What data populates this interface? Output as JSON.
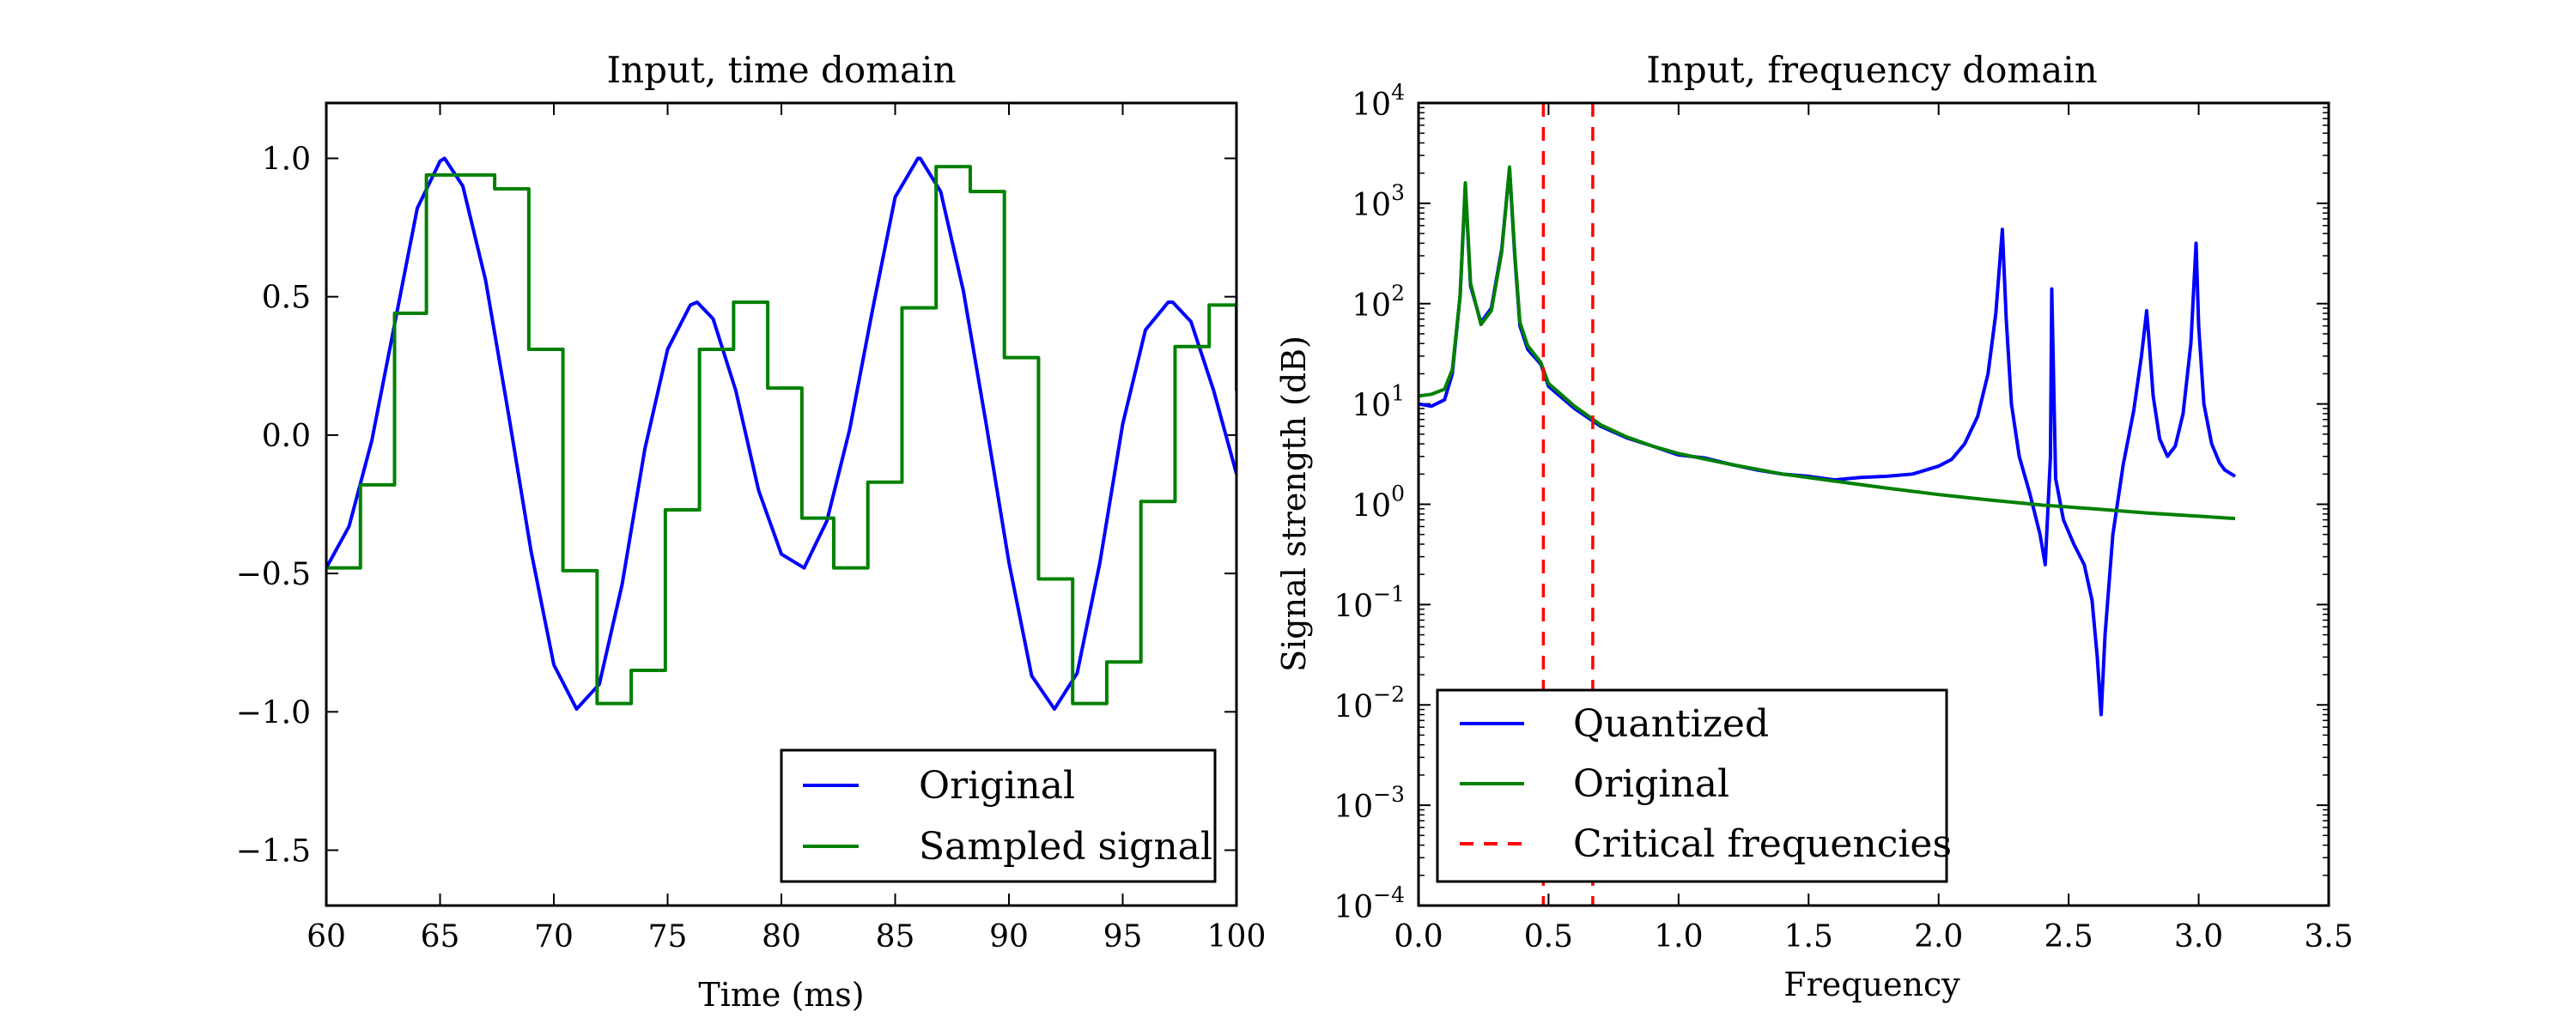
{
  "chart_data": [
    {
      "type": "line",
      "title": "Input, time domain",
      "xlabel": "Time (ms)",
      "ylabel": "",
      "xlim": [
        60,
        100
      ],
      "ylim": [
        -1.7,
        1.2
      ],
      "xticks": [
        60,
        65,
        70,
        75,
        80,
        85,
        90,
        95,
        100
      ],
      "xtick_labels": [
        "60",
        "65",
        "70",
        "75",
        "80",
        "85",
        "90",
        "95",
        "100"
      ],
      "yticks": [
        1.0,
        0.5,
        0.0,
        -0.5,
        -1.0,
        -1.5
      ],
      "ytick_labels": [
        "1.0",
        "0.5",
        "0.0",
        "−0.5",
        "−1.0",
        "−1.5"
      ],
      "grid": false,
      "legend_position": "lower-right",
      "series": [
        {
          "name": "Original",
          "color": "#0000ff",
          "style": "solid",
          "x": [
            60,
            61,
            62,
            63,
            64,
            65,
            65.2,
            66,
            67,
            68,
            69,
            70,
            71,
            72,
            73,
            74,
            75,
            76,
            76.3,
            77,
            78,
            79,
            80,
            81,
            82,
            83,
            84,
            85,
            86,
            86.1,
            87,
            88,
            89,
            90,
            91,
            92,
            93,
            94,
            95,
            96,
            97,
            97.2,
            98,
            99,
            100
          ],
          "y": [
            -0.48,
            -0.33,
            -0.02,
            0.4,
            0.82,
            0.99,
            1.0,
            0.9,
            0.56,
            0.08,
            -0.42,
            -0.83,
            -0.99,
            -0.9,
            -0.54,
            -0.05,
            0.31,
            0.47,
            0.48,
            0.42,
            0.16,
            -0.2,
            -0.43,
            -0.48,
            -0.31,
            0.02,
            0.45,
            0.86,
            1.0,
            1.0,
            0.88,
            0.52,
            0.04,
            -0.46,
            -0.87,
            -0.99,
            -0.86,
            -0.46,
            0.04,
            0.38,
            0.48,
            0.48,
            0.41,
            0.16,
            -0.14
          ]
        },
        {
          "name": "Sampled signal",
          "color": "#008000",
          "style": "step",
          "x": [
            60,
            61.5,
            63,
            64.4,
            65.9,
            67.4,
            68.9,
            70.4,
            71.9,
            73.4,
            74.9,
            76.4,
            77.9,
            79.4,
            80.9,
            82.3,
            83.8,
            85.3,
            86.8,
            88.3,
            89.8,
            91.3,
            92.8,
            94.3,
            95.8,
            97.3,
            98.8,
            100
          ],
          "y": [
            -0.48,
            -0.18,
            0.44,
            0.94,
            0.94,
            0.89,
            0.31,
            -0.49,
            -0.97,
            -0.85,
            -0.27,
            0.31,
            0.48,
            0.17,
            -0.3,
            -0.48,
            -0.17,
            0.46,
            0.97,
            0.88,
            0.28,
            -0.52,
            -0.97,
            -0.82,
            -0.24,
            0.32,
            0.47,
            0.16
          ]
        }
      ]
    },
    {
      "type": "line",
      "title": "Input, frequency domain",
      "xlabel": "Frequency",
      "ylabel": "Signal strength (dB)",
      "xlim": [
        0,
        3.5
      ],
      "ylim": [
        0.0001,
        10000
      ],
      "yscale": "log",
      "xticks": [
        0.0,
        0.5,
        1.0,
        1.5,
        2.0,
        2.5,
        3.0,
        3.5
      ],
      "xtick_labels": [
        "0.0",
        "0.5",
        "1.0",
        "1.5",
        "2.0",
        "2.5",
        "3.0",
        "3.5"
      ],
      "yticks": [
        0.0001,
        0.001,
        0.01,
        0.1,
        1,
        10,
        100,
        1000,
        10000
      ],
      "ytick_exponents": [
        "−4",
        "−3",
        "−2",
        "−1",
        "0",
        "1",
        "2",
        "3",
        "4"
      ],
      "ytick_base": "10",
      "grid": false,
      "legend_position": "lower-left",
      "series": [
        {
          "name": "Quantized",
          "color": "#0000ff",
          "style": "solid",
          "x": [
            0.0,
            0.05,
            0.1,
            0.13,
            0.16,
            0.18,
            0.2,
            0.24,
            0.28,
            0.32,
            0.35,
            0.37,
            0.39,
            0.42,
            0.47,
            0.5,
            0.6,
            0.7,
            0.8,
            0.9,
            1.0,
            1.1,
            1.2,
            1.3,
            1.4,
            1.5,
            1.6,
            1.7,
            1.8,
            1.9,
            2.0,
            2.05,
            2.1,
            2.15,
            2.19,
            2.22,
            2.245,
            2.26,
            2.28,
            2.31,
            2.35,
            2.39,
            2.41,
            2.43,
            2.435,
            2.45,
            2.48,
            2.52,
            2.56,
            2.59,
            2.61,
            2.625,
            2.64,
            2.67,
            2.71,
            2.75,
            2.78,
            2.8,
            2.81,
            2.825,
            2.85,
            2.88,
            2.91,
            2.94,
            2.97,
            2.99,
            3.0,
            3.02,
            3.05,
            3.08,
            3.1,
            3.14
          ],
          "y": [
            10,
            9.5,
            11,
            20,
            120,
            1500,
            150,
            65,
            90,
            350,
            2200,
            300,
            60,
            35,
            25,
            15,
            9,
            6,
            4.6,
            3.8,
            3.1,
            2.9,
            2.5,
            2.2,
            2.0,
            1.9,
            1.75,
            1.85,
            1.9,
            2.0,
            2.4,
            2.8,
            4.0,
            7.5,
            20,
            80,
            550,
            70,
            10,
            3.0,
            1.3,
            0.5,
            0.25,
            3,
            140,
            1.8,
            0.7,
            0.4,
            0.25,
            0.11,
            0.03,
            0.008,
            0.05,
            0.5,
            2.5,
            8.5,
            30,
            85,
            40,
            12,
            4.5,
            3.0,
            3.8,
            8,
            40,
            400,
            60,
            10,
            4,
            2.6,
            2.2,
            1.9
          ]
        },
        {
          "name": "Original",
          "color": "#008000",
          "style": "solid",
          "x": [
            0.0,
            0.05,
            0.1,
            0.13,
            0.16,
            0.18,
            0.2,
            0.24,
            0.28,
            0.32,
            0.35,
            0.37,
            0.39,
            0.42,
            0.47,
            0.5,
            0.6,
            0.7,
            0.8,
            0.9,
            1.0,
            1.2,
            1.4,
            1.6,
            1.8,
            2.0,
            2.2,
            2.4,
            2.6,
            2.8,
            3.0,
            3.14
          ],
          "y": [
            12,
            12.5,
            14,
            22,
            120,
            1600,
            160,
            62,
            85,
            330,
            2300,
            320,
            65,
            38,
            26,
            16,
            9.5,
            6.2,
            4.7,
            3.8,
            3.2,
            2.5,
            2.0,
            1.7,
            1.45,
            1.25,
            1.1,
            0.98,
            0.9,
            0.82,
            0.76,
            0.72
          ]
        },
        {
          "name": "Critical frequencies",
          "color": "#ff0000",
          "style": "dashed",
          "vlines": [
            0.48,
            0.67
          ]
        }
      ]
    }
  ]
}
